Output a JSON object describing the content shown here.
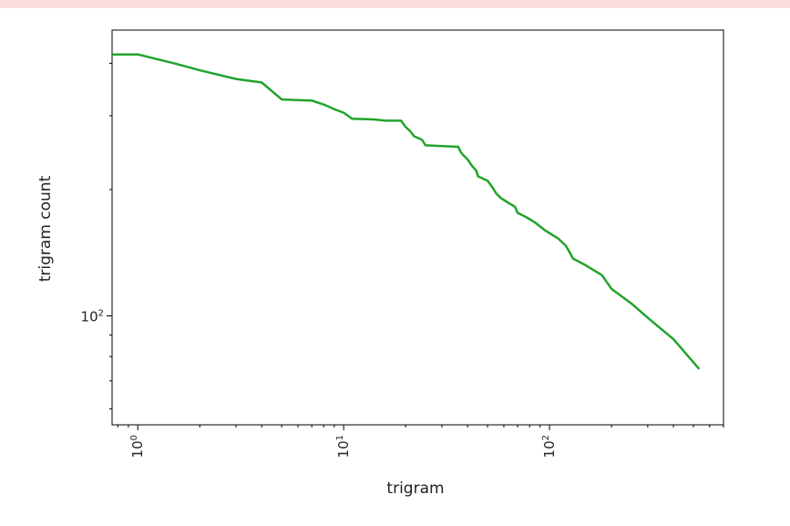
{
  "chart_data": {
    "type": "line",
    "title": "",
    "xlabel": "trigram",
    "ylabel": "trigram count",
    "xscale": "log",
    "yscale": "log",
    "xlim": [
      0.75,
      700
    ],
    "ylim": [
      55,
      480
    ],
    "grid": false,
    "line_color": "#22a32b",
    "x_ticks": [
      {
        "value": 1,
        "base": "10",
        "exp": "0"
      },
      {
        "value": 10,
        "base": "10",
        "exp": "1"
      },
      {
        "value": 100,
        "base": "10",
        "exp": "2"
      }
    ],
    "y_ticks": [
      {
        "value": 100,
        "base": "10",
        "exp": "2"
      }
    ],
    "series": [
      {
        "x": [
          0.75,
          1,
          1.5,
          2,
          3,
          4,
          5,
          7,
          8,
          9,
          10,
          11,
          14,
          16,
          19,
          20,
          21,
          22,
          24,
          25,
          30,
          36,
          37,
          38,
          40,
          42,
          44,
          45,
          50,
          53,
          55,
          58,
          63,
          68,
          70,
          77,
          85,
          95,
          110,
          120,
          125,
          130,
          150,
          180,
          200,
          250,
          300,
          400,
          530
        ],
        "y": [
          420,
          420,
          400,
          385,
          367,
          360,
          328,
          326,
          319,
          311,
          305,
          295,
          294,
          292,
          292,
          282,
          276,
          268,
          263,
          255,
          254,
          253,
          246,
          242,
          236,
          228,
          222,
          215,
          210,
          202,
          196,
          191,
          186,
          182,
          176,
          172,
          167,
          160,
          153,
          147,
          142,
          137,
          132,
          125,
          116,
          107,
          99,
          88,
          75
        ]
      }
    ]
  }
}
